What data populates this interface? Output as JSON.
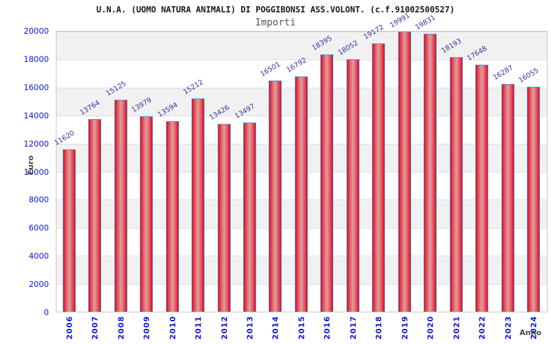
{
  "header": {
    "title": "U.N.A. (UOMO NATURA ANIMALI) DI POGGIBONSI ASS.VOLONT. (c.f.91002500527)",
    "subtitle": "Importi"
  },
  "chart_data": {
    "type": "bar",
    "title": "U.N.A. (UOMO NATURA ANIMALI) DI POGGIBONSI ASS.VOLONT. (c.f.91002500527)",
    "subtitle": "Importi",
    "xlabel": "Anno",
    "ylabel": "Euro",
    "categories": [
      "2006",
      "2007",
      "2008",
      "2009",
      "2010",
      "2011",
      "2012",
      "2013",
      "2014",
      "2015",
      "2016",
      "2017",
      "2018",
      "2019",
      "2020",
      "2021",
      "2022",
      "2023",
      "2024"
    ],
    "values": [
      11620,
      13764,
      15125,
      13979,
      13594,
      15212,
      13426,
      13497,
      16501,
      16792,
      18395,
      18052,
      19172,
      19991,
      19831,
      18193,
      17648,
      16287,
      16055
    ],
    "ylim": [
      0,
      20000
    ],
    "yticks": [
      0,
      2000,
      4000,
      6000,
      8000,
      10000,
      12000,
      14000,
      16000,
      18000,
      20000
    ],
    "legend": null,
    "grid": "horizontal-bands",
    "colors": {
      "bar-fill-edge": "#c50f22",
      "bar-fill-center": "#d9a0a2",
      "bar-border": "#5b9bd5",
      "value-label": "#3333a0",
      "axis-label": "#1111dd",
      "axis-title": "#444444",
      "band-gray": "#f1f1f1",
      "gridline": "#dcdcdc"
    }
  }
}
